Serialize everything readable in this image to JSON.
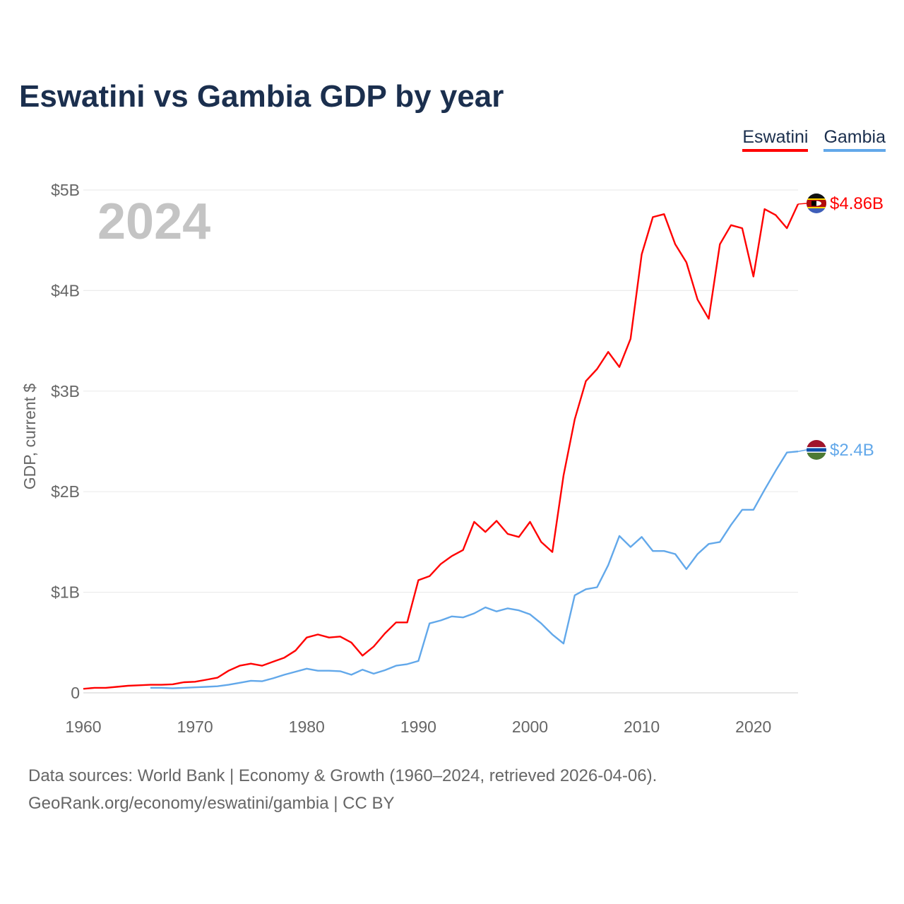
{
  "chart_data": {
    "type": "line",
    "title": "Eswatini vs Gambia GDP by year",
    "xlabel": "",
    "ylabel": "GDP, current $",
    "xlim": [
      1960,
      2024
    ],
    "ylim": [
      0,
      5
    ],
    "y_unit": "billions USD",
    "x_ticks": [
      1960,
      1970,
      1980,
      1990,
      2000,
      2010,
      2020
    ],
    "x_tick_labels": [
      "1960",
      "1970",
      "1980",
      "1990",
      "2000",
      "2010",
      "2020"
    ],
    "y_ticks": [
      0,
      1,
      2,
      3,
      4,
      5
    ],
    "y_tick_labels": [
      "0",
      "$1B",
      "$2B",
      "$3B",
      "$4B",
      "$5B"
    ],
    "grid": true,
    "legend_placement": "top-right",
    "year_label": "2024",
    "series": [
      {
        "name": "Eswatini",
        "color": "#ff0000",
        "start_year": 1960,
        "end_label": "$4.86B",
        "values": [
          0.04,
          0.05,
          0.05,
          0.06,
          0.07,
          0.075,
          0.08,
          0.08,
          0.085,
          0.105,
          0.11,
          0.13,
          0.15,
          0.22,
          0.27,
          0.29,
          0.27,
          0.31,
          0.35,
          0.42,
          0.55,
          0.58,
          0.55,
          0.56,
          0.5,
          0.37,
          0.46,
          0.59,
          0.7,
          0.7,
          1.12,
          1.16,
          1.28,
          1.36,
          1.42,
          1.7,
          1.6,
          1.71,
          1.58,
          1.55,
          1.7,
          1.5,
          1.4,
          2.16,
          2.72,
          3.1,
          3.22,
          3.39,
          3.24,
          3.52,
          4.36,
          4.73,
          4.76,
          4.46,
          4.28,
          3.91,
          3.72,
          4.46,
          4.65,
          4.62,
          4.14,
          4.81,
          4.75,
          4.62,
          4.86
        ]
      },
      {
        "name": "Gambia",
        "color": "#62a8ea",
        "start_year": 1966,
        "end_label": "$2.4B",
        "values": [
          0.05,
          0.05,
          0.045,
          0.05,
          0.055,
          0.06,
          0.065,
          0.08,
          0.1,
          0.12,
          0.115,
          0.145,
          0.18,
          0.21,
          0.24,
          0.22,
          0.22,
          0.215,
          0.18,
          0.23,
          0.19,
          0.225,
          0.27,
          0.285,
          0.317,
          0.69,
          0.72,
          0.76,
          0.75,
          0.79,
          0.85,
          0.81,
          0.84,
          0.82,
          0.78,
          0.69,
          0.58,
          0.49,
          0.97,
          1.03,
          1.05,
          1.27,
          1.56,
          1.45,
          1.55,
          1.41,
          1.41,
          1.38,
          1.23,
          1.38,
          1.48,
          1.5,
          1.67,
          1.82,
          1.82,
          2.02,
          2.21,
          2.39,
          2.4
        ]
      }
    ]
  },
  "footer": {
    "line1": "Data sources: World Bank | Economy & Growth (1960–2024, retrieved 2026-04-06).",
    "line2": "GeoRank.org/economy/eswatini/gambia | CC BY"
  }
}
